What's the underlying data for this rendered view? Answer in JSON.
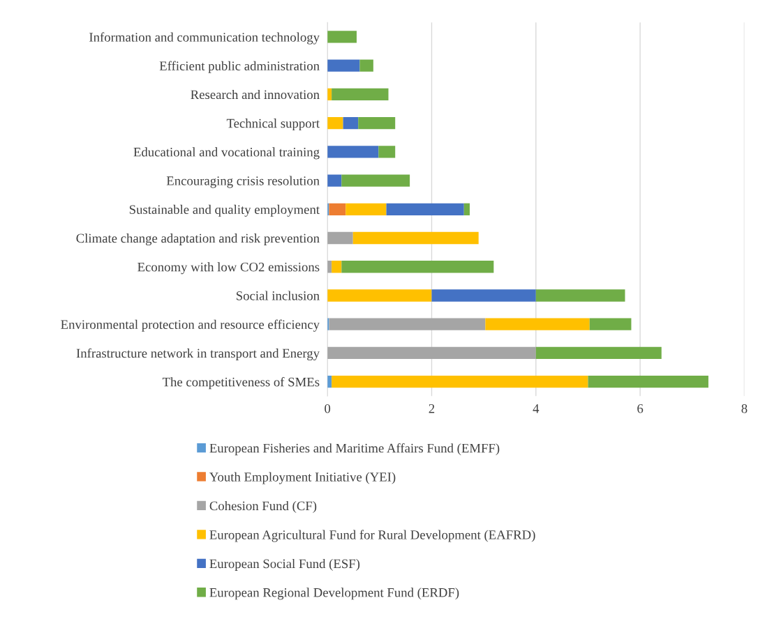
{
  "chart_data": {
    "type": "bar",
    "orientation": "horizontal",
    "stacked": true,
    "categories": [
      "Information and communication technology",
      "Efficient public administration",
      "Research and innovation",
      "Technical support",
      "Educational and vocational training",
      "Encouraging crisis resolution",
      "Sustainable and quality employment",
      "Climate change adaptation and risk prevention",
      "Economy with low CO2 emissions",
      "Social inclusion",
      "Environmental protection and resource efficiency",
      "Infrastructure network in transport and Energy",
      "The competitiveness of SMEs"
    ],
    "series": [
      {
        "name": "European Fisheries and Maritime Affairs Fund (EMFF)",
        "color": "#5b9bd5",
        "values": [
          null,
          null,
          null,
          null,
          null,
          null,
          0.03,
          null,
          null,
          null,
          0.03,
          null,
          0.08
        ]
      },
      {
        "name": "Youth Employment Initiative (YEI)",
        "color": "#ed7d31",
        "values": [
          null,
          null,
          null,
          null,
          null,
          null,
          0.32,
          null,
          null,
          null,
          null,
          null,
          null
        ]
      },
      {
        "name": "Cohesion Fund (CF)",
        "color": "#a5a5a5",
        "values": [
          null,
          null,
          null,
          null,
          null,
          null,
          null,
          0.49,
          0.08,
          null,
          3.0,
          4.0,
          null
        ]
      },
      {
        "name": "European Agricultural Fund for Rural Development (EAFRD)",
        "color": "#ffc000",
        "values": [
          null,
          null,
          0.08,
          0.3,
          null,
          null,
          0.78,
          2.41,
          0.19,
          2.0,
          2.0,
          null,
          4.92
        ]
      },
      {
        "name": "European Social Fund (ESF)",
        "color": "#4472c4",
        "values": [
          null,
          0.62,
          null,
          0.29,
          0.98,
          0.27,
          1.49,
          null,
          null,
          2.0,
          null,
          null,
          null
        ]
      },
      {
        "name": "European Regional Development Fund (ERDF)",
        "color": "#70ad47",
        "values": [
          0.56,
          0.26,
          1.09,
          0.71,
          0.32,
          1.31,
          0.11,
          null,
          2.92,
          1.71,
          0.8,
          2.41,
          2.31
        ]
      }
    ],
    "xlim": [
      0,
      8
    ],
    "xticks": [
      0,
      2,
      4,
      6,
      8
    ],
    "grid": "x",
    "legend": "bottom"
  }
}
